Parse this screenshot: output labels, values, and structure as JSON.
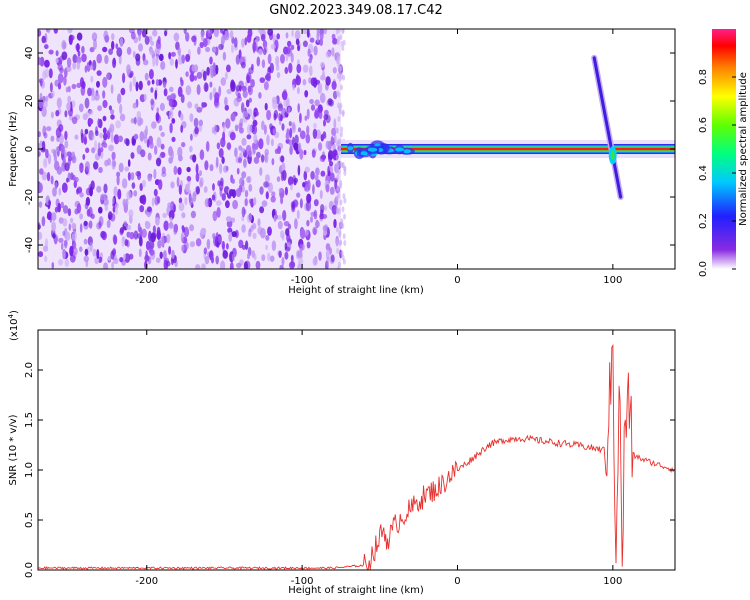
{
  "title": "GN02.2023.349.08.17.C42",
  "colors": {
    "snr_line": "#e8312e",
    "axis": "#000000",
    "noise": "#7b22e8",
    "ridge_core": "#ff1a1a",
    "ridge_outer": "#3ee03e"
  },
  "colorbar": {
    "label": "Normalized spectral amplitude",
    "ticks": [
      "0.0",
      "0.2",
      "0.4",
      "0.6",
      "0.8"
    ],
    "tick_values": [
      0.0,
      0.2,
      0.4,
      0.6,
      0.8
    ],
    "range": [
      0,
      1
    ],
    "colormap": [
      "#ffffff",
      "#8a2be2",
      "#2020ff",
      "#00c8ff",
      "#00ff80",
      "#60ff00",
      "#ffff00",
      "#ff8000",
      "#ff0000",
      "#ff1f8a"
    ]
  },
  "chart_data": [
    {
      "type": "heatmap",
      "xlabel": "Height of straight line (km)",
      "ylabel": "Frequency (Hz)",
      "xlim": [
        -270,
        140
      ],
      "ylim": [
        -50,
        50
      ],
      "xticks": [
        -200,
        -100,
        0,
        100
      ],
      "xtick_labels": [
        "-200",
        "-100",
        "0",
        "100"
      ],
      "yticks": [
        -40,
        -20,
        0,
        20,
        40
      ],
      "ytick_labels": [
        "-40",
        "-20",
        "0",
        "20",
        "40"
      ],
      "noise_region_x": [
        -270,
        -75
      ],
      "ridge": {
        "frequency": 0,
        "x_range": [
          -75,
          140
        ],
        "amplitude": 0.95
      },
      "diagonal_feature": {
        "x_start": 88,
        "f_start": 38,
        "x_end": 105,
        "f_end": -20
      }
    },
    {
      "type": "line",
      "xlabel": "Height of straight line (km)",
      "ylabel": "SNR (10 * v/v)",
      "multiplier": "(x10",
      "multiplier_exp": "4",
      "multiplier_close": ")",
      "xlim": [
        -270,
        140
      ],
      "ylim": [
        0,
        2.4
      ],
      "xticks": [
        -200,
        -100,
        0,
        100
      ],
      "xtick_labels": [
        "-200",
        "-100",
        "0",
        "100"
      ],
      "yticks": [
        0.0,
        0.5,
        1.0,
        1.5,
        2.0
      ],
      "ytick_labels": [
        "0.0",
        "0.5",
        "1.0",
        "1.5",
        "2.0"
      ],
      "series": [
        {
          "x": [
            -270,
            -150,
            -80,
            -58,
            -55,
            -52,
            -48,
            -45,
            -40,
            -35,
            -30,
            -25,
            -20,
            -15,
            -10,
            -5,
            0,
            10,
            20,
            30,
            40,
            50,
            60,
            70,
            80,
            90,
            95,
            98,
            100,
            102,
            104,
            106,
            108,
            110,
            113,
            120,
            130,
            140
          ],
          "y": [
            0.02,
            0.02,
            0.02,
            0.05,
            0.15,
            0.25,
            0.4,
            0.3,
            0.45,
            0.55,
            0.6,
            0.7,
            0.75,
            0.8,
            0.85,
            0.95,
            1.0,
            1.12,
            1.25,
            1.3,
            1.32,
            1.3,
            1.28,
            1.26,
            1.24,
            1.21,
            1.2,
            1.6,
            2.3,
            0.1,
            1.9,
            0.15,
            1.5,
            1.7,
            1.15,
            1.1,
            1.05,
            1.0
          ]
        }
      ]
    }
  ]
}
